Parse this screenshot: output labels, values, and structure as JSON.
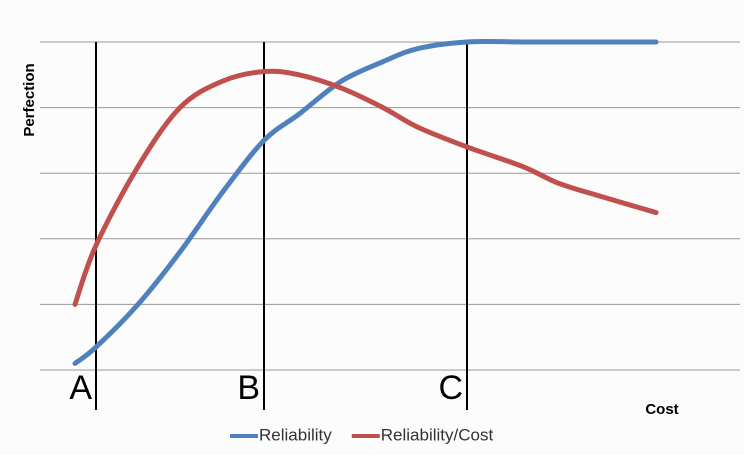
{
  "chart_data": {
    "type": "line",
    "x": [
      0.5,
      0.8,
      1.4,
      2,
      2.6,
      3.2,
      3.7,
      4.3,
      4.9,
      5.4,
      6.1,
      6.9,
      7.4,
      8,
      8.8
    ],
    "series": [
      {
        "name": "Reliability",
        "color": "#4f81bd",
        "values": [
          0.1,
          0.35,
          1.0,
          1.8,
          2.7,
          3.5,
          3.9,
          4.4,
          4.7,
          4.9,
          5.0,
          5.0,
          5.0,
          5.0,
          5.0
        ]
      },
      {
        "name": "Reliability/Cost",
        "color": "#c0504d",
        "values": [
          1.0,
          1.9,
          3.1,
          4.0,
          4.4,
          4.55,
          4.5,
          4.3,
          4.0,
          3.7,
          3.4,
          3.1,
          2.85,
          2.65,
          2.4
        ]
      }
    ],
    "xlim": [
      0,
      10
    ],
    "ylim": [
      0,
      5
    ],
    "yticks": [
      0,
      1,
      2,
      3,
      4,
      5
    ],
    "grid": true,
    "x_label": "Cost",
    "y_label": "Perfection",
    "markers": [
      {
        "label": "A",
        "x": 0.8
      },
      {
        "label": "B",
        "x": 3.2
      },
      {
        "label": "C",
        "x": 6.1
      }
    ],
    "legend": "bottom"
  }
}
